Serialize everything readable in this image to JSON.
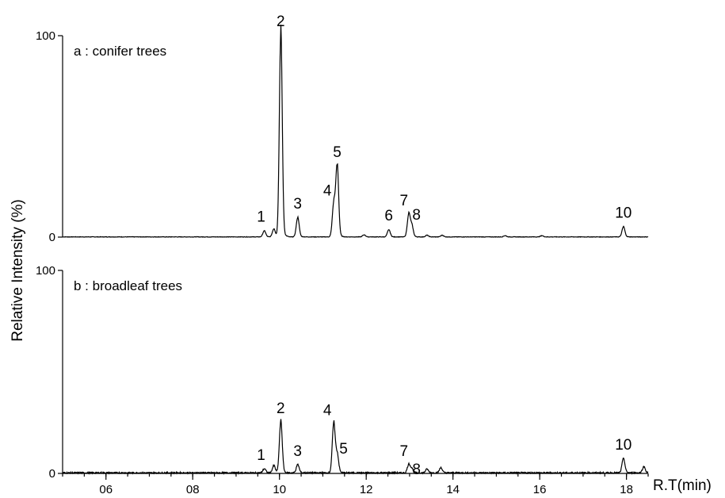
{
  "chart_data": {
    "type": "line",
    "xlabel": "R.T(min)",
    "ylabel": "Relative Intensity (%)",
    "xlim": [
      5,
      18.5
    ],
    "x_ticks": [
      "06",
      "08",
      "10",
      "12",
      "14",
      "16",
      "18"
    ],
    "x_tick_values": [
      6,
      8,
      10,
      12,
      14,
      16,
      18
    ],
    "panels": [
      {
        "label": "a : conifer trees",
        "ylim": [
          0,
          100
        ],
        "y_ticks": [
          "0",
          "100"
        ],
        "y_tick_values": [
          0,
          100
        ],
        "peaks": [
          {
            "label": "1",
            "x": 9.65,
            "y": 3
          },
          {
            "label": "",
            "x": 9.87,
            "y": 4
          },
          {
            "label": "2",
            "x": 10.03,
            "y": 100
          },
          {
            "label": "3",
            "x": 10.42,
            "y": 9.5
          },
          {
            "label": "4",
            "x": 11.25,
            "y": 16
          },
          {
            "label": "5",
            "x": 11.33,
            "y": 35
          },
          {
            "label": "",
            "x": 11.95,
            "y": 1
          },
          {
            "label": "6",
            "x": 12.52,
            "y": 3.5
          },
          {
            "label": "7",
            "x": 12.98,
            "y": 11
          },
          {
            "label": "8",
            "x": 13.05,
            "y": 5.5
          },
          {
            "label": "",
            "x": 13.4,
            "y": 0.8
          },
          {
            "label": "",
            "x": 13.75,
            "y": 0.8
          },
          {
            "label": "",
            "x": 15.2,
            "y": 0.6
          },
          {
            "label": "",
            "x": 16.05,
            "y": 0.6
          },
          {
            "label": "10",
            "x": 17.93,
            "y": 5
          }
        ]
      },
      {
        "label": "b : broadleaf trees",
        "ylim": [
          0,
          100
        ],
        "y_ticks": [
          "0",
          "100"
        ],
        "y_tick_values": [
          0,
          100
        ],
        "peaks": [
          {
            "label": "1",
            "x": 9.65,
            "y": 2
          },
          {
            "label": "",
            "x": 9.87,
            "y": 3.5
          },
          {
            "label": "2",
            "x": 10.03,
            "y": 25
          },
          {
            "label": "3",
            "x": 10.42,
            "y": 4
          },
          {
            "label": "4",
            "x": 11.25,
            "y": 24
          },
          {
            "label": "5",
            "x": 11.33,
            "y": 9
          },
          {
            "label": "7",
            "x": 12.98,
            "y": 4
          },
          {
            "label": "8",
            "x": 13.05,
            "y": 2
          },
          {
            "label": "",
            "x": 13.4,
            "y": 1.8
          },
          {
            "label": "",
            "x": 13.72,
            "y": 2.5
          },
          {
            "label": "10",
            "x": 17.93,
            "y": 7
          },
          {
            "label": "",
            "x": 18.4,
            "y": 3
          }
        ]
      }
    ]
  }
}
